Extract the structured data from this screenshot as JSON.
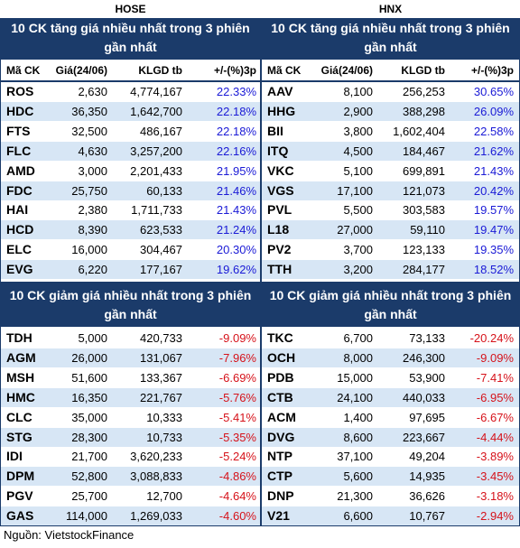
{
  "exchanges": {
    "left": "HOSE",
    "right": "HNX"
  },
  "headers": {
    "ticker": "Mã CK",
    "price": "Giá(24/06)",
    "volume": "KLGD tb",
    "change": "+/-(%)3p"
  },
  "hose": {
    "gain_title": "10 CK tăng giá nhiều nhất trong 3 phiên gần nhất",
    "gain_rows": [
      {
        "t": "ROS",
        "p": "2,630",
        "v": "4,774,167",
        "c": "22.33%"
      },
      {
        "t": "HDC",
        "p": "36,350",
        "v": "1,642,700",
        "c": "22.18%"
      },
      {
        "t": "FTS",
        "p": "32,500",
        "v": "486,167",
        "c": "22.18%"
      },
      {
        "t": "FLC",
        "p": "4,630",
        "v": "3,257,200",
        "c": "22.16%"
      },
      {
        "t": "AMD",
        "p": "3,000",
        "v": "2,201,433",
        "c": "21.95%"
      },
      {
        "t": "FDC",
        "p": "25,750",
        "v": "60,133",
        "c": "21.46%"
      },
      {
        "t": "HAI",
        "p": "2,380",
        "v": "1,711,733",
        "c": "21.43%"
      },
      {
        "t": "HCD",
        "p": "8,390",
        "v": "623,533",
        "c": "21.24%"
      },
      {
        "t": "ELC",
        "p": "16,000",
        "v": "304,467",
        "c": "20.30%"
      },
      {
        "t": "EVG",
        "p": "6,220",
        "v": "177,167",
        "c": "19.62%"
      }
    ],
    "loss_title": "10 CK giảm giá nhiều nhất trong 3 phiên gần nhất",
    "loss_rows": [
      {
        "t": "TDH",
        "p": "5,000",
        "v": "420,733",
        "c": "-9.09%"
      },
      {
        "t": "AGM",
        "p": "26,000",
        "v": "131,067",
        "c": "-7.96%"
      },
      {
        "t": "MSH",
        "p": "51,600",
        "v": "133,367",
        "c": "-6.69%"
      },
      {
        "t": "HMC",
        "p": "16,350",
        "v": "221,767",
        "c": "-5.76%"
      },
      {
        "t": "CLC",
        "p": "35,000",
        "v": "10,333",
        "c": "-5.41%"
      },
      {
        "t": "STG",
        "p": "28,300",
        "v": "10,733",
        "c": "-5.35%"
      },
      {
        "t": "IDI",
        "p": "21,700",
        "v": "3,620,233",
        "c": "-5.24%"
      },
      {
        "t": "DPM",
        "p": "52,800",
        "v": "3,088,833",
        "c": "-4.86%"
      },
      {
        "t": "PGV",
        "p": "25,700",
        "v": "12,700",
        "c": "-4.64%"
      },
      {
        "t": "GAS",
        "p": "114,000",
        "v": "1,269,033",
        "c": "-4.60%"
      }
    ]
  },
  "hnx": {
    "gain_title": "10 CK tăng giá nhiều nhất trong 3 phiên gần nhất",
    "gain_rows": [
      {
        "t": "AAV",
        "p": "8,100",
        "v": "256,253",
        "c": "30.65%"
      },
      {
        "t": "HHG",
        "p": "2,900",
        "v": "388,298",
        "c": "26.09%"
      },
      {
        "t": "BII",
        "p": "3,800",
        "v": "1,602,404",
        "c": "22.58%"
      },
      {
        "t": "ITQ",
        "p": "4,500",
        "v": "184,467",
        "c": "21.62%"
      },
      {
        "t": "VKC",
        "p": "5,100",
        "v": "699,891",
        "c": "21.43%"
      },
      {
        "t": "VGS",
        "p": "17,100",
        "v": "121,073",
        "c": "20.42%"
      },
      {
        "t": "PVL",
        "p": "5,500",
        "v": "303,583",
        "c": "19.57%"
      },
      {
        "t": "L18",
        "p": "27,000",
        "v": "59,110",
        "c": "19.47%"
      },
      {
        "t": "PV2",
        "p": "3,700",
        "v": "123,133",
        "c": "19.35%"
      },
      {
        "t": "TTH",
        "p": "3,200",
        "v": "284,177",
        "c": "18.52%"
      }
    ],
    "loss_title": "10 CK giảm giá nhiều nhất trong 3 phiên gần nhất",
    "loss_rows": [
      {
        "t": "TKC",
        "p": "6,700",
        "v": "73,133",
        "c": "-20.24%"
      },
      {
        "t": "OCH",
        "p": "8,000",
        "v": "246,300",
        "c": "-9.09%"
      },
      {
        "t": "PDB",
        "p": "15,000",
        "v": "53,900",
        "c": "-7.41%"
      },
      {
        "t": "CTB",
        "p": "24,100",
        "v": "440,033",
        "c": "-6.95%"
      },
      {
        "t": "ACM",
        "p": "1,400",
        "v": "97,695",
        "c": "-6.67%"
      },
      {
        "t": "DVG",
        "p": "8,600",
        "v": "223,667",
        "c": "-4.44%"
      },
      {
        "t": "NTP",
        "p": "37,100",
        "v": "49,204",
        "c": "-3.89%"
      },
      {
        "t": "CTP",
        "p": "5,600",
        "v": "14,935",
        "c": "-3.45%"
      },
      {
        "t": "DNP",
        "p": "21,300",
        "v": "36,626",
        "c": "-3.18%"
      },
      {
        "t": "V21",
        "p": "6,600",
        "v": "10,767",
        "c": "-2.94%"
      }
    ]
  },
  "source": "Nguồn: VietstockFinance",
  "colors": {
    "banner": "#1b3b6a",
    "alt_row": "#d7e6f5",
    "gain": "#1a1ad6",
    "loss": "#d6121a"
  }
}
